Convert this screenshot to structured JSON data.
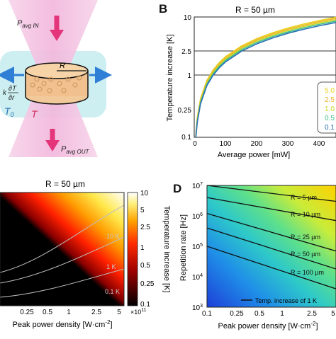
{
  "panels": {
    "a": {
      "labels": {
        "p_in": "P",
        "p_in_sub": "avg IN",
        "p_out": "P",
        "p_out_sub": "avg OUT",
        "radius": "R",
        "temp": "T",
        "t0": "T",
        "t0_sub": "0",
        "flux_k": "k",
        "flux_num": "∂T",
        "flux_den": "∂r"
      }
    },
    "b": {
      "letter": "B",
      "title": "R = 50 µm",
      "ylabel": "Temperature increase [K]",
      "xlabel": "Average power [mW]",
      "yticks": [
        "0.1",
        "0.25",
        "1",
        "2.5",
        "10"
      ],
      "xticks": [
        "0",
        "100",
        "200",
        "300",
        "400"
      ],
      "legend": [
        "5.0",
        "2.5",
        "1.0",
        "0.5",
        "0.1"
      ]
    },
    "c": {
      "title": "R = 50 µm",
      "xlabel": "Peak power density [W·cm",
      "xlabel_sup": "-2",
      "xlabel_end": "]",
      "xticks": [
        "0.25",
        "0.5",
        "1",
        "2.5",
        "5"
      ],
      "x_exp": "×10",
      "x_exp_sup": "11",
      "colorbar_label": "Temperature increase [K]",
      "colorbar_ticks": [
        "10",
        "5",
        "2.5",
        "1",
        "0.5",
        "0.25",
        "0.1"
      ],
      "contours": [
        "10 K",
        "1 K",
        "0.1 K"
      ]
    },
    "d": {
      "letter": "D",
      "ylabel": "Repetition rate [Hz]",
      "xlabel": "Peak power density [W·cm",
      "xlabel_sup": "-2",
      "xlabel_end": "]",
      "xticks": [
        "0.1",
        "0.25",
        "0.5",
        "1",
        "2.5",
        "5"
      ],
      "yticks": [
        "10",
        "10",
        "10",
        "10",
        "10"
      ],
      "ytick_exps": [
        "7",
        "6",
        "5",
        "4",
        "3"
      ],
      "lines": [
        "R = 5 µm",
        "R = 10 µm",
        "R = 25 µm",
        "R = 50 µm",
        "R = 100 µm"
      ],
      "legend": "Temp. increase of 1 K"
    }
  },
  "chart_data": [
    {
      "panel": "B",
      "type": "line",
      "title": "R = 50 µm",
      "xlabel": "Average power [mW]",
      "ylabel": "Temperature increase [K]",
      "xlim": [
        0,
        450
      ],
      "ylim": [
        0.1,
        10
      ],
      "yscale": "log",
      "reference_lines_y": [
        1,
        2.5
      ],
      "x": [
        5,
        10,
        20,
        40,
        60,
        80,
        100,
        150,
        200,
        250,
        300,
        350,
        400,
        450
      ],
      "series": [
        {
          "name": "5.0",
          "color": "#e8d21e",
          "values": [
            0.11,
            0.22,
            0.44,
            0.88,
            1.32,
            1.76,
            2.2,
            3.3,
            4.4,
            5.5,
            6.6,
            7.7,
            8.8,
            9.9
          ]
        },
        {
          "name": "2.5",
          "color": "#f2b32a",
          "values": [
            0.105,
            0.21,
            0.42,
            0.84,
            1.26,
            1.68,
            2.1,
            3.15,
            4.2,
            5.25,
            6.3,
            7.35,
            8.4,
            9.45
          ]
        },
        {
          "name": "1.0",
          "color": "#c9d82a",
          "values": [
            0.1,
            0.2,
            0.4,
            0.8,
            1.2,
            1.6,
            2.0,
            3.0,
            4.0,
            5.0,
            6.0,
            7.0,
            8.0,
            9.0
          ]
        },
        {
          "name": "0.5",
          "color": "#3fbf8a",
          "values": [
            0.095,
            0.19,
            0.38,
            0.76,
            1.14,
            1.52,
            1.9,
            2.85,
            3.8,
            4.75,
            5.7,
            6.65,
            7.6,
            8.55
          ]
        },
        {
          "name": "0.1",
          "color": "#2a6fb5",
          "values": [
            0.09,
            0.18,
            0.36,
            0.72,
            1.08,
            1.44,
            1.8,
            2.7,
            3.6,
            4.5,
            5.4,
            6.3,
            7.2,
            8.1
          ]
        }
      ],
      "legend_position": "right"
    },
    {
      "panel": "C",
      "type": "heatmap",
      "title": "R = 50 µm",
      "xlabel": "Peak power density [W·cm-2]",
      "xscale": "log",
      "xlim": [
        0.1,
        5
      ],
      "colorbar_label": "Temperature increase [K]",
      "colorbar_range": [
        0.1,
        10
      ],
      "colormap": "hot",
      "contours_k": [
        10,
        1,
        0.1
      ]
    },
    {
      "panel": "D",
      "type": "heatmap",
      "ylabel": "Repetition rate [Hz]",
      "xlabel": "Peak power density [W·cm-2]",
      "xscale": "log",
      "yscale": "log",
      "xlim": [
        0.1,
        5
      ],
      "ylim": [
        1000,
        10000000
      ],
      "colormap": "jet",
      "iso_lines": [
        {
          "name": "R = 5 µm",
          "x": [
            0.1,
            5
          ],
          "y": [
            10000000,
            3000000
          ]
        },
        {
          "name": "R = 10 µm",
          "x": [
            0.1,
            5
          ],
          "y": [
            4000000,
            700000
          ]
        },
        {
          "name": "R = 25 µm",
          "x": [
            0.1,
            5
          ],
          "y": [
            1200000,
            70000
          ]
        },
        {
          "name": "R = 50 µm",
          "x": [
            0.1,
            5
          ],
          "y": [
            400000,
            18000
          ]
        },
        {
          "name": "R = 100 µm",
          "x": [
            0.1,
            5
          ],
          "y": [
            100000,
            4000
          ]
        }
      ],
      "legend": "Temp. increase of 1 K"
    }
  ]
}
